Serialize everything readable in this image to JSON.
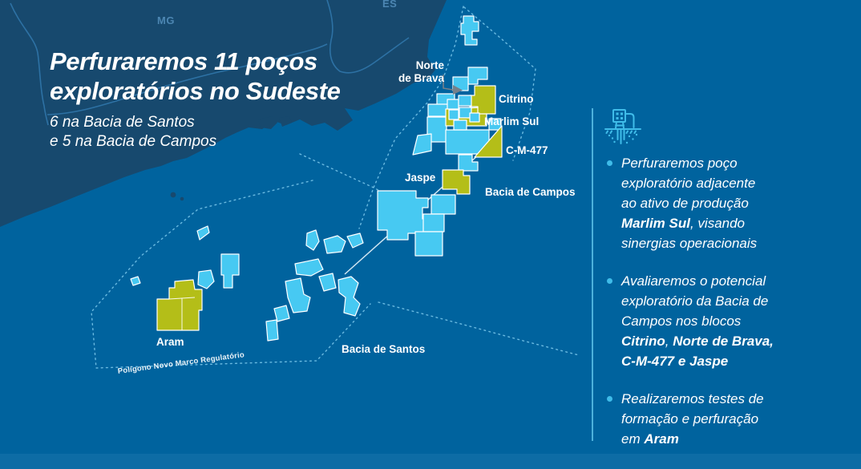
{
  "colors": {
    "ocean": "#00639E",
    "land": "#17496E",
    "land_border": "#2E74A6",
    "block_cyan": "#47C9F2",
    "block_green": "#B4BE18",
    "accent_cyan": "#3FBCE9",
    "divider": "#55B9E2",
    "muted_label": "#4C86B2",
    "dash": "#7CC9EC",
    "leader_gray": "#75808A"
  },
  "headline": {
    "title_line1": "Perfuraremos 11 poços",
    "title_line2": "exploratórios no Sudeste",
    "subtitle_line1": "6 na Bacia de Santos",
    "subtitle_line2": "e 5 na Bacia de Campos"
  },
  "map": {
    "state_labels": {
      "mg": "MG",
      "es": "ES"
    },
    "labels": {
      "norte_de_brava": "Norte\nde Brava",
      "citrino": "Citrino",
      "marlim_sul": "Marlim Sul",
      "cm477": "C-M-477",
      "jaspe": "Jaspe",
      "bacia_de_campos": "Bacia de Campos",
      "bacia_de_santos": "Bacia de Santos",
      "aram": "Aram",
      "poligono": "Polígono Novo Marco Regulatório"
    }
  },
  "panel": {
    "icon": "drilling-rig-icon",
    "bullets": [
      {
        "segments": [
          {
            "t": "Perfuraremos poço\nexploratório adjacente\nao ativo de produção\n",
            "b": false
          },
          {
            "t": "Marlim Sul",
            "b": true
          },
          {
            "t": ", visando\nsinergias operacionais",
            "b": false
          }
        ]
      },
      {
        "segments": [
          {
            "t": "Avaliaremos o potencial\nexploratório da Bacia de\nCampos nos blocos\n",
            "b": false
          },
          {
            "t": "Citrino",
            "b": true
          },
          {
            "t": ", ",
            "b": false
          },
          {
            "t": "Norte de Brava,\nC-M-477 e Jaspe",
            "b": true
          }
        ]
      },
      {
        "segments": [
          {
            "t": "Realizaremos testes de\nformação e perfuração\nem ",
            "b": false
          },
          {
            "t": "Aram",
            "b": true
          }
        ]
      }
    ]
  }
}
